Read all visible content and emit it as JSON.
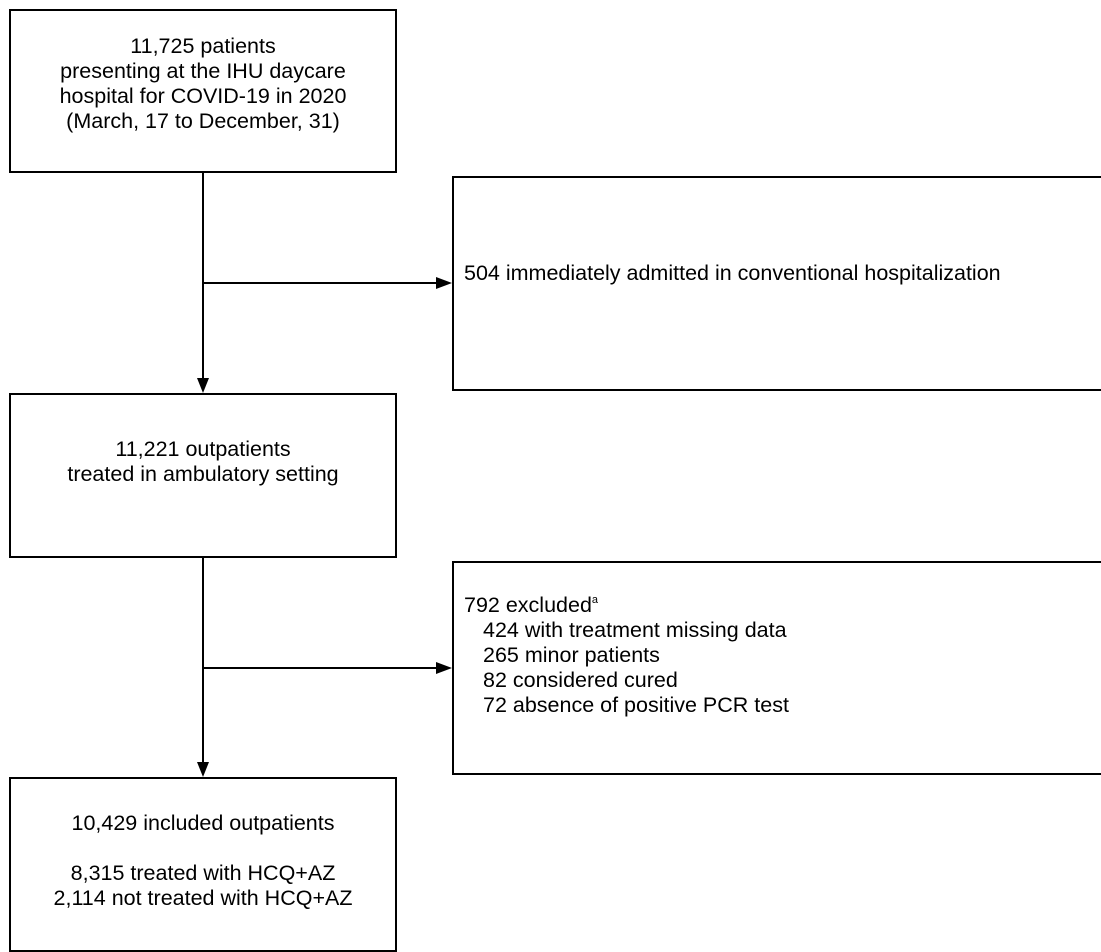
{
  "boxes": {
    "initial": {
      "lines": [
        "11,725 patients",
        "presenting at the IHU daycare",
        "hospital for COVID-19 in 2020",
        "(March, 17 to December, 31)"
      ]
    },
    "admitted": {
      "text": "504 immediately admitted in conventional hospitalization"
    },
    "outpatients": {
      "lines": [
        "11,221 outpatients",
        "treated in ambulatory setting"
      ]
    },
    "excluded": {
      "title": "792 excluded",
      "footnote_mark": "a",
      "items": [
        "424 with treatment missing data",
        "265 minor patients",
        "82 considered cured",
        "72 absence of positive PCR test"
      ]
    },
    "included": {
      "title": "10,429 included outpatients",
      "lines": [
        "8,315 treated with HCQ+AZ",
        "2,114 not treated with HCQ+AZ"
      ]
    }
  },
  "colors": {
    "stroke": "#000000",
    "background": "#ffffff"
  }
}
